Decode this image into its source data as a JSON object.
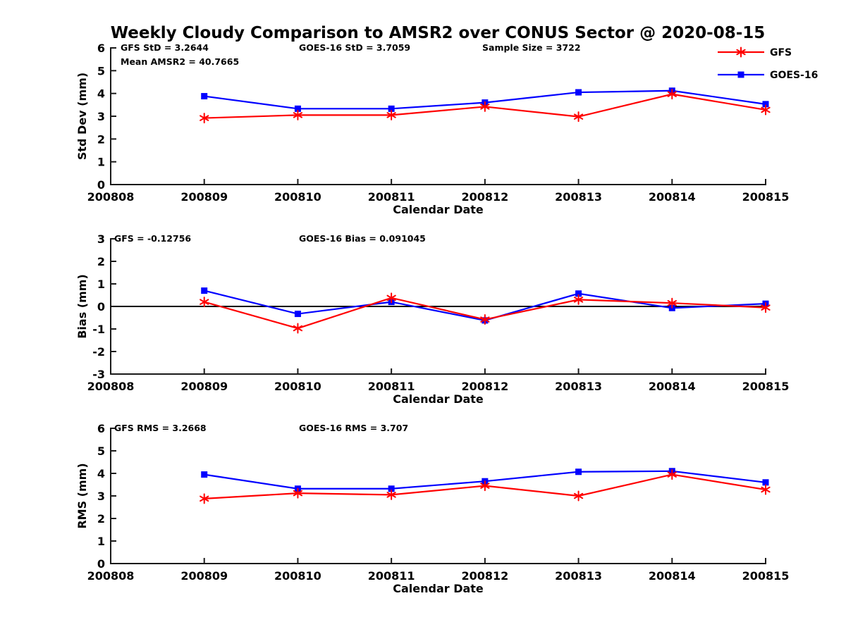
{
  "figure": {
    "title": "Weekly Cloudy Comparison to AMSR2 over CONUS Sector @ 2020-08-15",
    "background_color": "#ffffff",
    "axis_color": "#1a1a1a",
    "text_color": "#000000",
    "legend": [
      {
        "label": "GFS",
        "color": "#ff0000",
        "marker": "asterisk"
      },
      {
        "label": "GOES-16",
        "color": "#0000ff",
        "marker": "square"
      }
    ]
  },
  "chart_data": [
    {
      "type": "line",
      "panel": "std_dev",
      "ylabel": "Std Dev (mm)",
      "xlabel": "Calendar Date",
      "ylim": [
        0,
        6
      ],
      "yticks": [
        0,
        1,
        2,
        3,
        4,
        5,
        6
      ],
      "x_categories": [
        "200808",
        "200809",
        "200810",
        "200811",
        "200812",
        "200813",
        "200814",
        "200815"
      ],
      "grid": false,
      "legend_position": "top-right",
      "annotations": [
        "GFS StD = 3.2644",
        "Mean AMSR2 = 40.7665",
        "GOES-16 StD = 3.7059",
        "Sample Size = 3722"
      ],
      "series": [
        {
          "name": "GOES-16",
          "color": "#0000ff",
          "marker": "square",
          "x": [
            "200809",
            "200810",
            "200811",
            "200812",
            "200813",
            "200814",
            "200815"
          ],
          "values": [
            3.88,
            3.33,
            3.33,
            3.6,
            4.05,
            4.12,
            3.53
          ]
        },
        {
          "name": "GFS",
          "color": "#ff0000",
          "marker": "asterisk",
          "x": [
            "200809",
            "200810",
            "200811",
            "200812",
            "200813",
            "200814",
            "200815"
          ],
          "values": [
            2.92,
            3.05,
            3.05,
            3.42,
            2.98,
            3.97,
            3.28
          ]
        }
      ]
    },
    {
      "type": "line",
      "panel": "bias",
      "ylabel": "Bias (mm)",
      "xlabel": "Calendar Date",
      "ylim": [
        -3,
        3
      ],
      "yticks": [
        -3,
        -2,
        -1,
        0,
        1,
        2,
        3
      ],
      "x_categories": [
        "200808",
        "200809",
        "200810",
        "200811",
        "200812",
        "200813",
        "200814",
        "200815"
      ],
      "grid": false,
      "zero_line": true,
      "annotations": [
        "GFS = -0.12756",
        "GOES-16 Bias  = 0.091045"
      ],
      "series": [
        {
          "name": "GOES-16",
          "color": "#0000ff",
          "marker": "square",
          "x": [
            "200809",
            "200810",
            "200811",
            "200812",
            "200813",
            "200814",
            "200815"
          ],
          "values": [
            0.7,
            -0.33,
            0.2,
            -0.62,
            0.57,
            -0.07,
            0.12
          ]
        },
        {
          "name": "GFS",
          "color": "#ff0000",
          "marker": "asterisk",
          "x": [
            "200809",
            "200810",
            "200811",
            "200812",
            "200813",
            "200814",
            "200815"
          ],
          "values": [
            0.2,
            -0.97,
            0.38,
            -0.58,
            0.3,
            0.15,
            -0.05
          ]
        }
      ]
    },
    {
      "type": "line",
      "panel": "rms",
      "ylabel": "RMS (mm)",
      "xlabel": "Calendar Date",
      "ylim": [
        0,
        6
      ],
      "yticks": [
        0,
        1,
        2,
        3,
        4,
        5,
        6
      ],
      "x_categories": [
        "200808",
        "200809",
        "200810",
        "200811",
        "200812",
        "200813",
        "200814",
        "200815"
      ],
      "grid": false,
      "annotations": [
        "GFS RMS = 3.2668",
        "GOES-16 RMS = 3.707"
      ],
      "series": [
        {
          "name": "GOES-16",
          "color": "#0000ff",
          "marker": "square",
          "x": [
            "200809",
            "200810",
            "200811",
            "200812",
            "200813",
            "200814",
            "200815"
          ],
          "values": [
            3.95,
            3.32,
            3.32,
            3.65,
            4.07,
            4.1,
            3.6
          ]
        },
        {
          "name": "GFS",
          "color": "#ff0000",
          "marker": "asterisk",
          "x": [
            "200809",
            "200810",
            "200811",
            "200812",
            "200813",
            "200814",
            "200815"
          ],
          "values": [
            2.88,
            3.12,
            3.05,
            3.45,
            3.0,
            3.95,
            3.28
          ]
        }
      ]
    }
  ]
}
